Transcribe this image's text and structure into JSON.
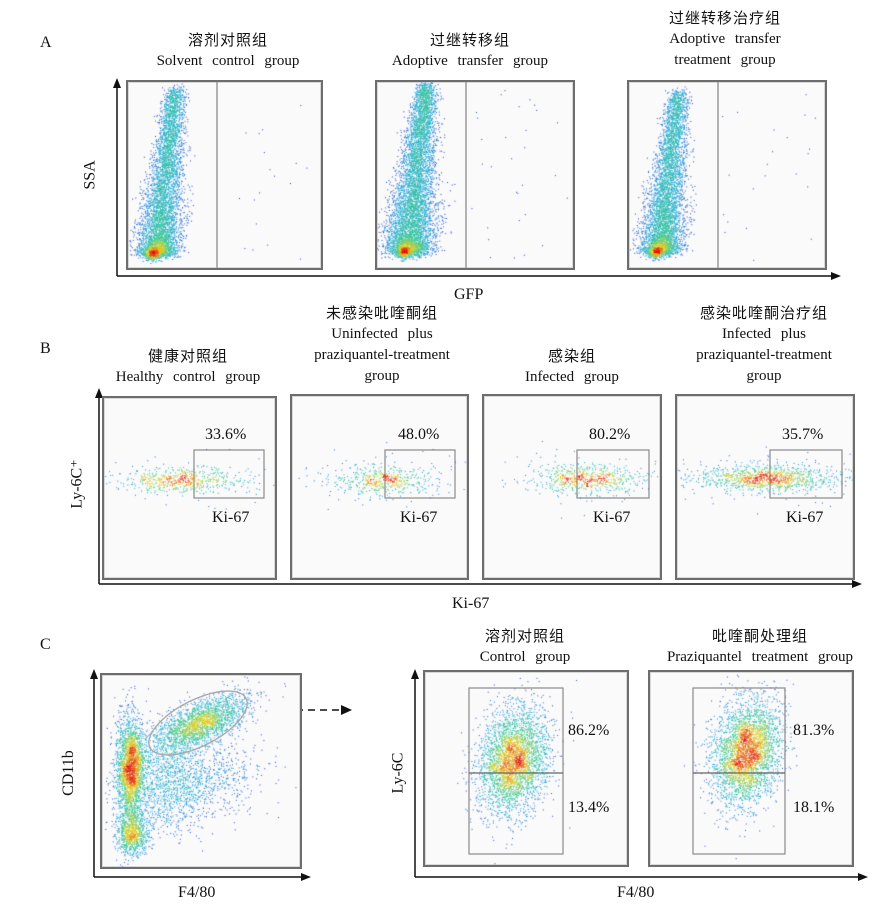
{
  "panel_a": {
    "letter": "A",
    "plots": [
      {
        "zh": "溶剂对照组",
        "en": "Solvent control group"
      },
      {
        "zh": "过继转移组",
        "en": "Adoptive transfer group"
      },
      {
        "zh": "过继转移治疗组",
        "en": "Adoptive transfer",
        "en2": "treatment group"
      }
    ],
    "x_axis": "GFP",
    "y_axis": "SSA"
  },
  "panel_b": {
    "letter": "B",
    "plots": [
      {
        "zh": "健康对照组",
        "en": "Healthy control group",
        "percent": "33.6%",
        "gate": "Ki-67"
      },
      {
        "zh": "未感染吡喹酮组",
        "en": "Uninfected plus",
        "en2": "praziquantel-treatment",
        "en3": "group",
        "percent": "48.0%",
        "gate": "Ki-67"
      },
      {
        "zh": "感染组",
        "en": "Infected group",
        "percent": "80.2%",
        "gate": "Ki-67"
      },
      {
        "zh": "感染吡喹酮治疗组",
        "en": "Infected plus",
        "en2": "praziquantel-treatment",
        "en3": "group",
        "percent": "35.7%",
        "gate": "Ki-67"
      }
    ],
    "x_axis": "Ki-67",
    "y_axis": "Ly-6C⁺"
  },
  "panel_c": {
    "letter": "C",
    "left_x_axis": "F4/80",
    "left_y_axis": "CD11b",
    "plots": [
      {
        "zh": "溶剂对照组",
        "en": "Control group",
        "upper": "86.2%",
        "lower": "13.4%"
      },
      {
        "zh": "吡喹酮处理组",
        "en": "Praziquantel treatment group",
        "upper": "81.3%",
        "lower": "18.1%"
      }
    ],
    "right_x_axis": "F4/80",
    "right_y_axis": "Ly-6C"
  },
  "colors": {
    "axis": "#111111",
    "frame": "#6d6d6d",
    "gate": "#8a8a8a",
    "density_low": "#2b2bd0",
    "density_mid": "#2ec7c0",
    "density_high": "#e8d21a",
    "density_peak": "#e01010"
  }
}
